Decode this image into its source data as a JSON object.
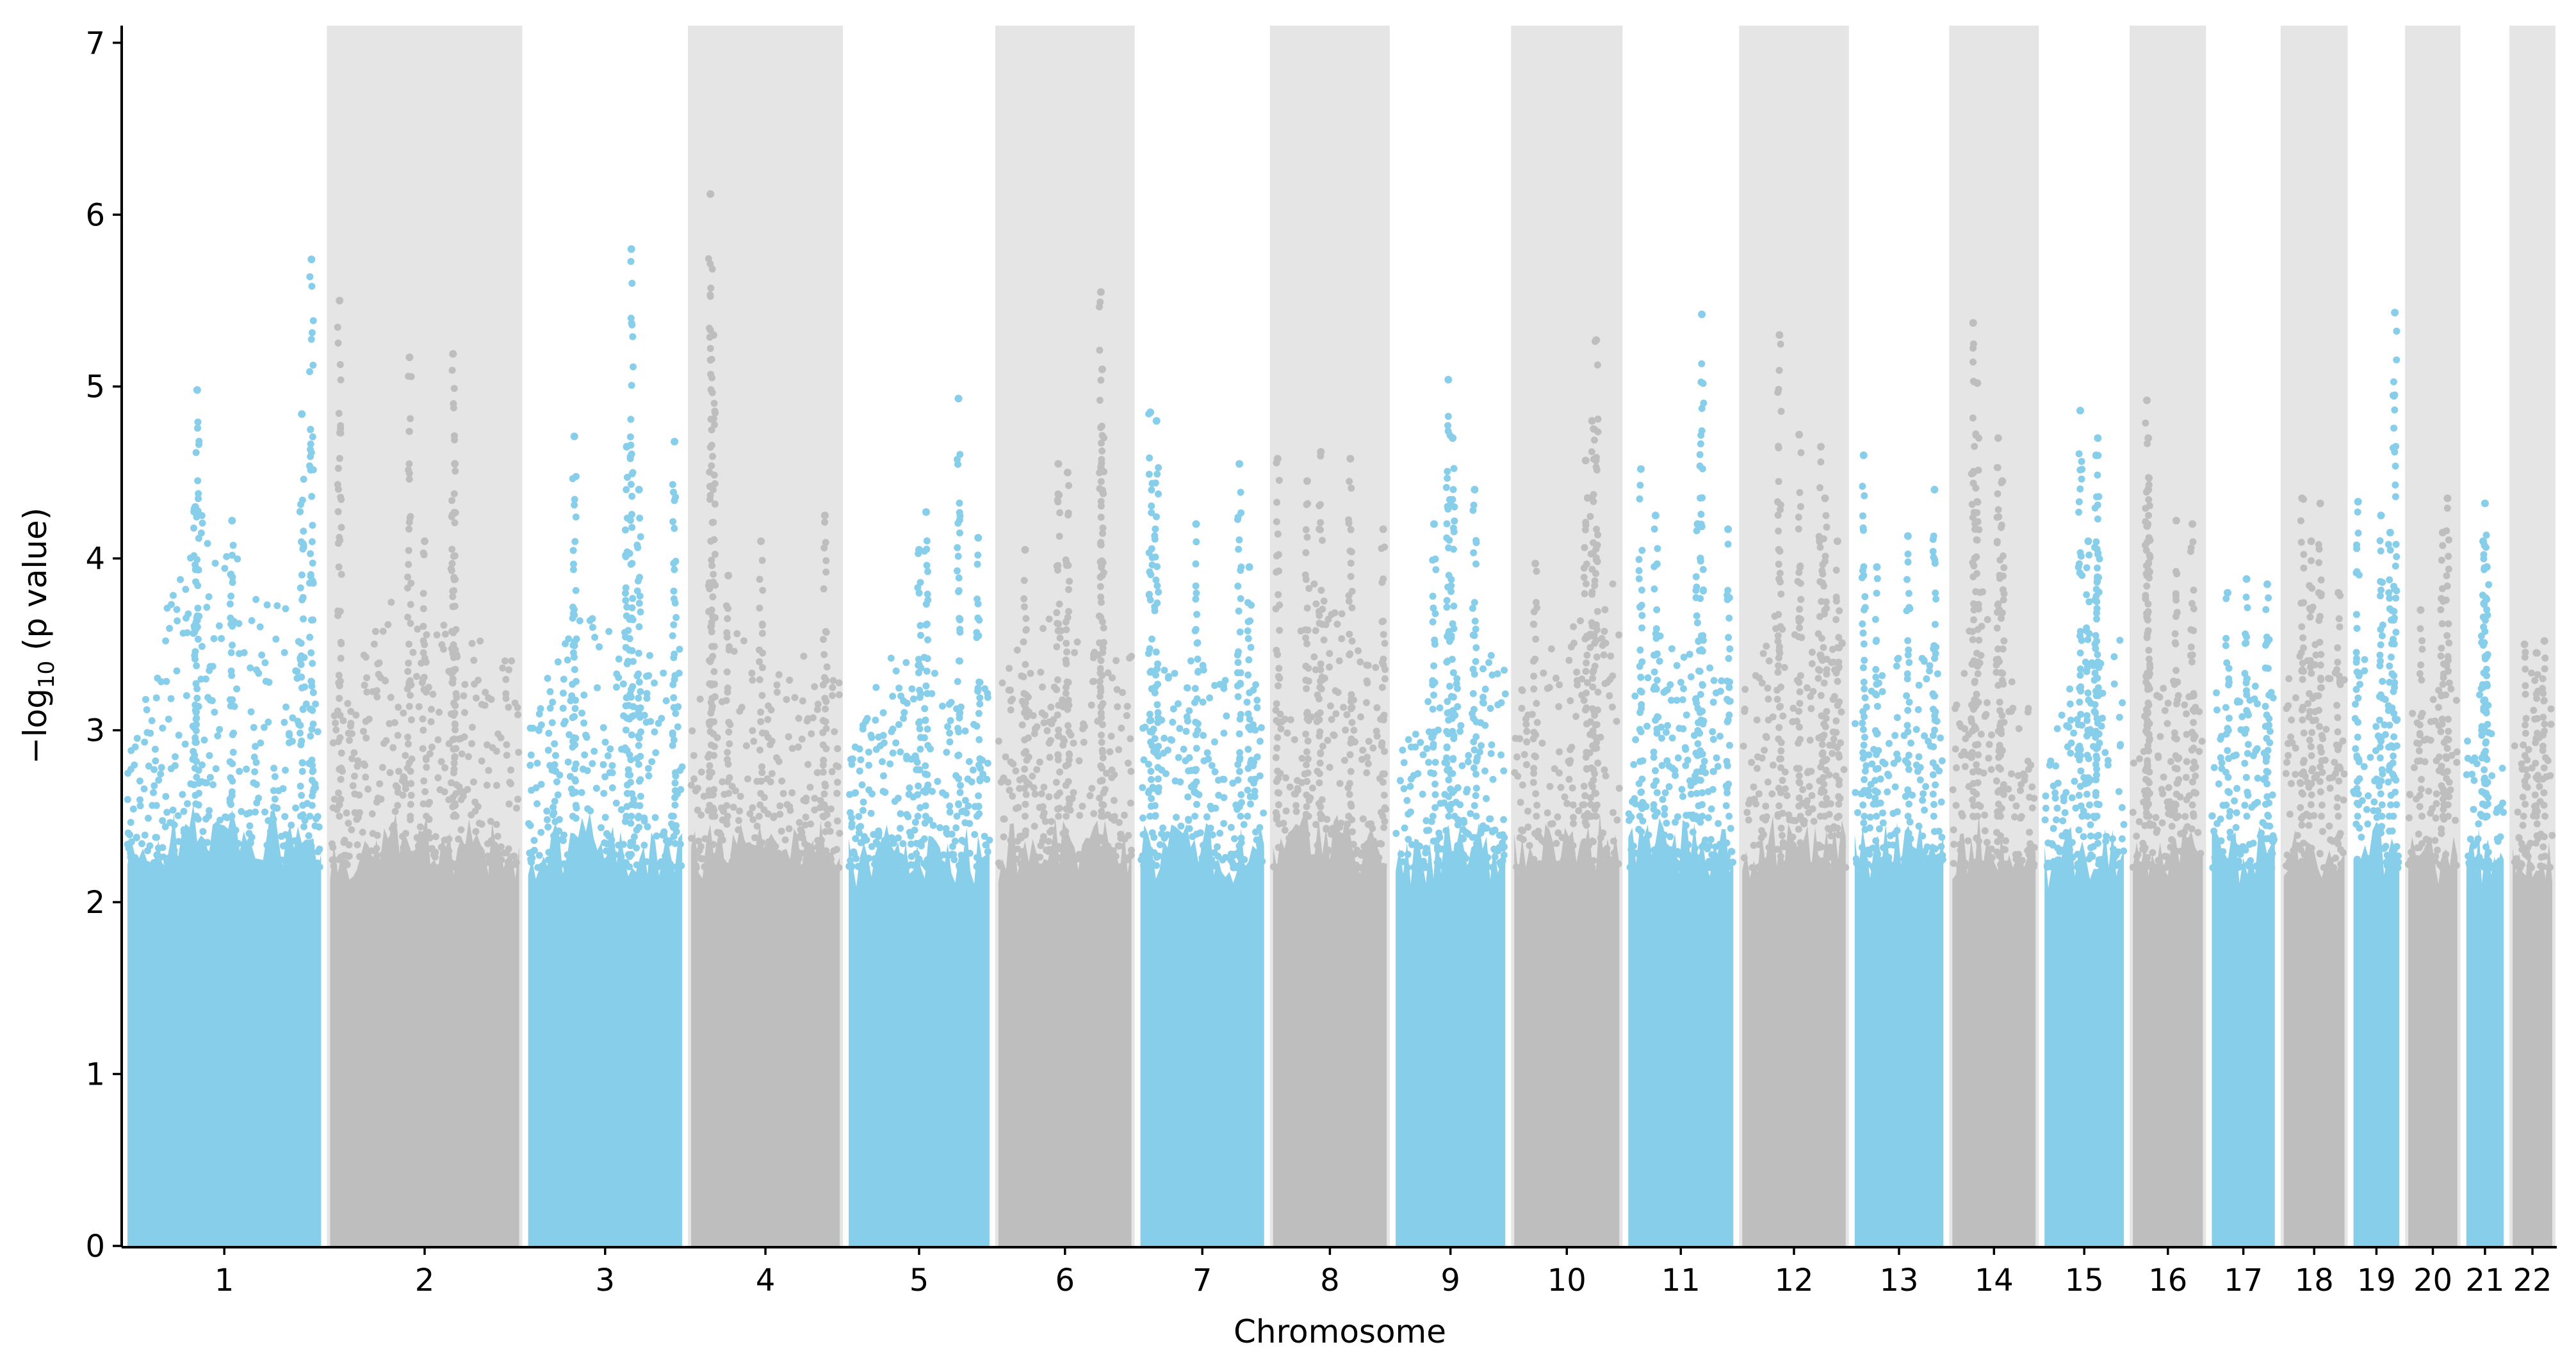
{
  "chart_data": {
    "type": "scatter",
    "subtype": "manhattan",
    "title": "",
    "xlabel": "Chromosome",
    "ylabel_main": "−log",
    "ylabel_sub": "10",
    "ylabel_tail": " (p value)",
    "ylim": [
      0,
      7.1
    ],
    "yticks": [
      "0",
      "1",
      "2",
      "3",
      "4",
      "5",
      "6",
      "7"
    ],
    "grid": false,
    "legend": "none",
    "colors": {
      "odd_points": "#87CEEB",
      "even_points": "#BEBEBE",
      "even_band": "#E5E5E5",
      "axis": "#000000"
    },
    "chromosomes": [
      {
        "label": "1",
        "length": 249,
        "band": [
          2.5,
          4.0,
          3.7,
          3.1
        ],
        "peaks": [
          [
            0.36,
            4.98
          ],
          [
            0.95,
            5.74
          ],
          [
            0.9,
            4.84
          ],
          [
            0.35,
            4.3
          ],
          [
            0.54,
            4.22
          ]
        ]
      },
      {
        "label": "2",
        "length": 243,
        "band": [
          2.75,
          3.5,
          3.3,
          3.1
        ],
        "peaks": [
          [
            0.05,
            5.5
          ],
          [
            0.42,
            5.17
          ],
          [
            0.65,
            5.19
          ],
          [
            0.66,
            4.55
          ],
          [
            0.5,
            4.1
          ]
        ]
      },
      {
        "label": "3",
        "length": 198,
        "band": [
          2.7,
          3.6,
          3.1,
          3.2
        ],
        "peaks": [
          [
            0.67,
            5.8
          ],
          [
            0.3,
            4.71
          ],
          [
            0.64,
            4.65
          ],
          [
            0.95,
            4.68
          ],
          [
            0.72,
            4.4
          ]
        ]
      },
      {
        "label": "4",
        "length": 191,
        "band": [
          2.8,
          3.3,
          3.2,
          3.1
        ],
        "peaks": [
          [
            0.13,
            6.12
          ],
          [
            0.15,
            5.3
          ],
          [
            0.47,
            4.1
          ],
          [
            0.9,
            4.25
          ],
          [
            0.25,
            3.9
          ]
        ]
      },
      {
        "label": "5",
        "length": 181,
        "band": [
          2.6,
          3.2,
          3.0,
          3.0
        ],
        "peaks": [
          [
            0.78,
            4.93
          ],
          [
            0.55,
            4.27
          ],
          [
            0.5,
            4.05
          ],
          [
            0.92,
            4.12
          ]
        ]
      },
      {
        "label": "6",
        "length": 171,
        "band": [
          3.0,
          3.4,
          3.2,
          3.2
        ],
        "peaks": [
          [
            0.77,
            5.55
          ],
          [
            0.78,
            5.1
          ],
          [
            0.45,
            4.55
          ],
          [
            0.52,
            4.5
          ],
          [
            0.2,
            4.05
          ]
        ]
      },
      {
        "label": "7",
        "length": 159,
        "band": [
          3.0,
          3.2,
          3.0,
          3.1
        ],
        "peaks": [
          [
            0.08,
            4.85
          ],
          [
            0.13,
            4.8
          ],
          [
            0.8,
            4.55
          ],
          [
            0.45,
            4.2
          ],
          [
            0.88,
            3.95
          ]
        ]
      },
      {
        "label": "8",
        "length": 146,
        "band": [
          2.9,
          3.6,
          3.4,
          3.0
        ],
        "peaks": [
          [
            0.04,
            4.58
          ],
          [
            0.42,
            4.62
          ],
          [
            0.68,
            4.58
          ],
          [
            0.3,
            4.45
          ],
          [
            0.97,
            4.17
          ]
        ]
      },
      {
        "label": "9",
        "length": 141,
        "band": [
          2.5,
          3.0,
          3.1,
          3.2
        ],
        "peaks": [
          [
            0.48,
            5.04
          ],
          [
            0.52,
            4.7
          ],
          [
            0.72,
            4.4
          ],
          [
            0.35,
            4.2
          ]
        ]
      },
      {
        "label": "10",
        "length": 135,
        "band": [
          3.0,
          3.2,
          3.4,
          3.6
        ],
        "peaks": [
          [
            0.78,
            5.27
          ],
          [
            0.74,
            4.8
          ],
          [
            0.68,
            4.57
          ],
          [
            0.2,
            3.97
          ]
        ]
      },
      {
        "label": "11",
        "length": 135,
        "band": [
          3.0,
          3.3,
          3.2,
          3.1
        ],
        "peaks": [
          [
            0.7,
            5.42
          ],
          [
            0.12,
            4.52
          ],
          [
            0.26,
            4.25
          ],
          [
            0.66,
            4.2
          ],
          [
            0.95,
            4.17
          ]
        ]
      },
      {
        "label": "12",
        "length": 133,
        "band": [
          3.0,
          3.4,
          3.3,
          3.2
        ],
        "peaks": [
          [
            0.36,
            5.3
          ],
          [
            0.55,
            4.72
          ],
          [
            0.76,
            4.65
          ],
          [
            0.8,
            4.35
          ],
          [
            0.92,
            4.1
          ]
        ]
      },
      {
        "label": "13",
        "length": 114,
        "band": [
          2.8,
          3.1,
          3.2,
          3.0
        ],
        "peaks": [
          [
            0.1,
            4.6
          ],
          [
            0.25,
            3.95
          ],
          [
            0.6,
            4.13
          ],
          [
            0.9,
            4.4
          ]
        ]
      },
      {
        "label": "14",
        "length": 107,
        "band": [
          2.8,
          3.6,
          3.0,
          2.9
        ],
        "peaks": [
          [
            0.25,
            5.37
          ],
          [
            0.3,
            5.02
          ],
          [
            0.55,
            4.7
          ],
          [
            0.6,
            4.45
          ]
        ]
      },
      {
        "label": "15",
        "length": 102,
        "band": [
          2.6,
          3.0,
          3.2,
          3.3
        ],
        "peaks": [
          [
            0.45,
            4.86
          ],
          [
            0.67,
            4.7
          ],
          [
            0.65,
            4.6
          ],
          [
            0.55,
            4.1
          ]
        ]
      },
      {
        "label": "16",
        "length": 90,
        "band": [
          2.6,
          3.0,
          3.0,
          3.0
        ],
        "peaks": [
          [
            0.2,
            4.92
          ],
          [
            0.22,
            4.7
          ],
          [
            0.22,
            4.4
          ],
          [
            0.62,
            4.22
          ],
          [
            0.85,
            4.2
          ]
        ]
      },
      {
        "label": "17",
        "length": 81,
        "band": [
          2.9,
          3.0,
          3.1,
          3.1
        ],
        "peaks": [
          [
            0.25,
            3.8
          ],
          [
            0.55,
            3.88
          ],
          [
            0.88,
            3.85
          ]
        ]
      },
      {
        "label": "18",
        "length": 78,
        "band": [
          3.0,
          3.2,
          3.2,
          3.0
        ],
        "peaks": [
          [
            0.3,
            4.35
          ],
          [
            0.6,
            4.32
          ],
          [
            0.45,
            4.1
          ],
          [
            0.9,
            3.8
          ]
        ]
      },
      {
        "label": "19",
        "length": 59,
        "band": [
          2.9,
          3.2,
          3.3,
          3.3
        ],
        "peaks": [
          [
            0.9,
            5.43
          ],
          [
            0.1,
            4.33
          ],
          [
            0.6,
            4.25
          ],
          [
            0.8,
            4.15
          ]
        ]
      },
      {
        "label": "20",
        "length": 63,
        "band": [
          2.8,
          2.9,
          3.0,
          3.0
        ],
        "peaks": [
          [
            0.8,
            4.35
          ],
          [
            0.7,
            4.15
          ],
          [
            0.25,
            3.7
          ]
        ]
      },
      {
        "label": "21",
        "length": 48,
        "band": [
          2.6,
          3.0,
          2.9,
          2.5
        ],
        "peaks": [
          [
            0.5,
            4.32
          ],
          [
            0.45,
            4.1
          ],
          [
            0.55,
            3.95
          ]
        ]
      },
      {
        "label": "22",
        "length": 51,
        "band": [
          2.6,
          3.0,
          3.1,
          2.9
        ],
        "peaks": [
          [
            0.8,
            3.52
          ],
          [
            0.3,
            3.5
          ],
          [
            0.6,
            3.45
          ]
        ]
      }
    ]
  }
}
